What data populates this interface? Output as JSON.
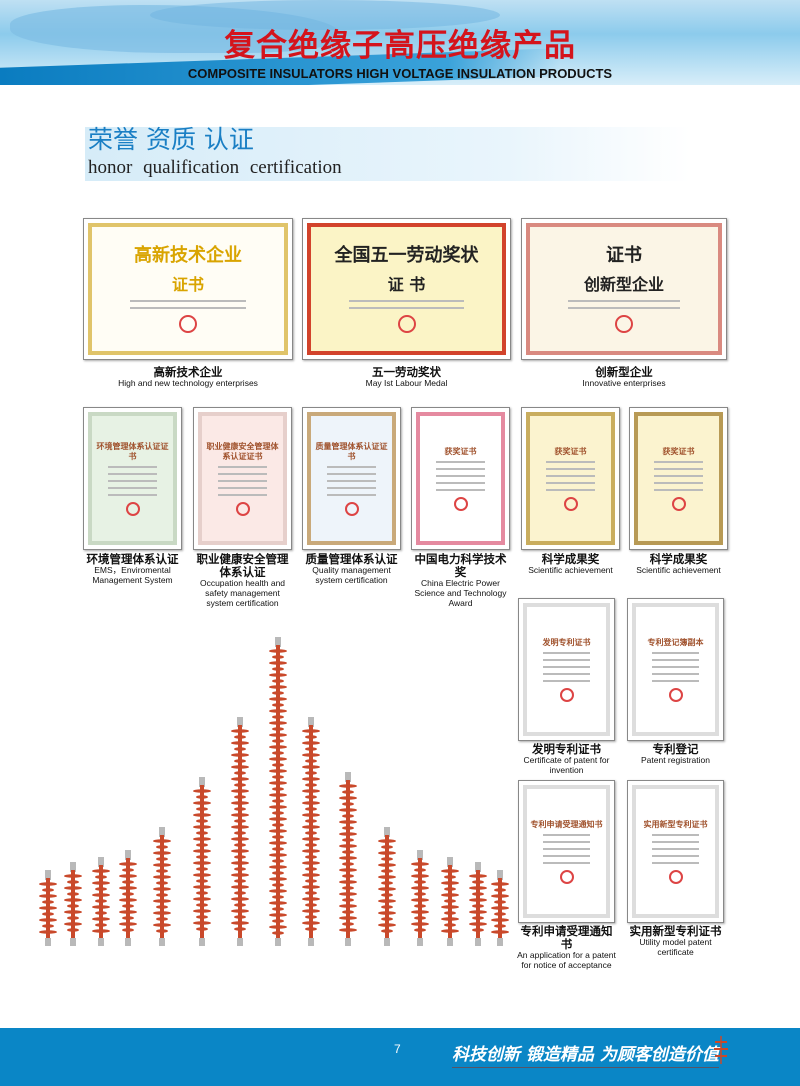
{
  "header": {
    "title_cn": "复合绝缘子高压绝缘产品",
    "title_en": "COMPOSITE INSULATORS HIGH VOLTAGE INSULATION PRODUCTS"
  },
  "section": {
    "title_cn": "荣誉 资质 认证",
    "title_en": "honor  qualification  certification"
  },
  "row1": [
    {
      "cn": "高新技术企业",
      "en": "High and new technology enterprises",
      "cert_title": "高新技术企业",
      "cert_sub": "证书",
      "bg": "#fffdf5",
      "frame": "#e0c46a",
      "color": "#d9a400"
    },
    {
      "cn": "五一劳动奖状",
      "en": "May Ist Labour Medal",
      "cert_title": "全国五一劳动奖状",
      "cert_sub": "证 书",
      "bg": "#fbf4c6",
      "frame": "#d2432b",
      "color": "#222"
    },
    {
      "cn": "创新型企业",
      "en": "Innovative enterprises",
      "cert_title": "证书",
      "cert_sub": "创新型企业",
      "bg": "#fbf5e6",
      "frame": "#d98a80",
      "color": "#222"
    }
  ],
  "row2": [
    {
      "cn": "环境管理体系认证",
      "en": "EMS，Enviromental Management System",
      "cert_title": "环境管理体系认证证书",
      "bg": "#e7f2e4",
      "frame": "#c9d9c4"
    },
    {
      "cn": "职业健康安全管理体系认证",
      "en": "Occupation health and safety management system certification",
      "cert_title": "职业健康安全管理体系认证证书",
      "bg": "#fbe9e6",
      "frame": "#e6cfcb"
    },
    {
      "cn": "质量管理体系认证",
      "en": "Quality management system certification",
      "cert_title": "质量管理体系认证证书",
      "bg": "#eef4fa",
      "frame": "#c9a97a"
    },
    {
      "cn": "中国电力科学技术奖",
      "en": "China Electric Power Science and Technology Award",
      "cert_title": "获奖证书",
      "bg": "#fff",
      "frame": "#e58aa0"
    },
    {
      "cn": "科学成果奖",
      "en": "Scientific achievement",
      "cert_title": "获奖证书",
      "bg": "#fbf3cf",
      "frame": "#c9ad5e"
    },
    {
      "cn": "科学成果奖",
      "en": "Scientific achievement",
      "cert_title": "获奖证书",
      "bg": "#fbf3cf",
      "frame": "#b89a55"
    }
  ],
  "patents": [
    {
      "cn": "发明专利证书",
      "en": "Certificate of patent for invention",
      "cert_title": "发明专利证书"
    },
    {
      "cn": "专利登记",
      "en": "Patent registration",
      "cert_title": "专利登记簿副本"
    },
    {
      "cn": "专利申请受理通知书",
      "en": "An application for a patent for notice of acceptance",
      "cert_title": "专利申请受理通知书"
    },
    {
      "cn": "实用新型专利证书",
      "en": "Utility model patent certificate",
      "cert_title": "实用新型专利证书"
    }
  ],
  "footer": {
    "page": "7",
    "slogan": "科技创新 锻造精品 为顾客创造价值"
  },
  "colors": {
    "accent_red": "#d4141c",
    "accent_blue": "#1a7fc4",
    "footer": "#0a86c6",
    "insulator": "#c9492b"
  }
}
